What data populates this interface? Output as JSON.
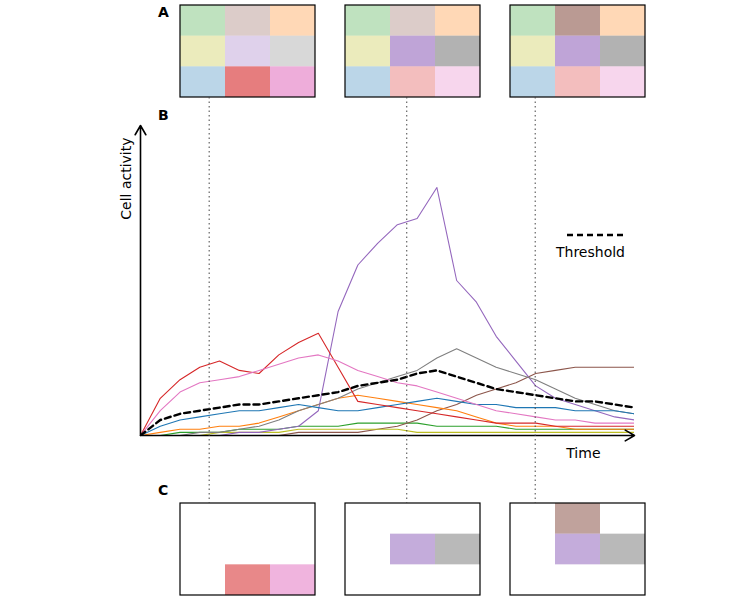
{
  "panel_labels": [
    "A",
    "B",
    "C"
  ],
  "chart_data": {
    "type": "line",
    "x_label": "Time",
    "y_label": "Cell activity",
    "tick_labels": false,
    "legend": "right",
    "xlim": [
      0,
      100
    ],
    "ylim": [
      0,
      100
    ],
    "snapshot_times": [
      14,
      54,
      80
    ],
    "x": [
      0,
      4,
      8,
      12,
      16,
      20,
      24,
      28,
      32,
      36,
      40,
      44,
      48,
      52,
      56,
      60,
      64,
      68,
      72,
      76,
      80,
      84,
      88,
      92,
      96,
      100
    ],
    "series": [
      {
        "color": "#2ca02c",
        "values": [
          0,
          0,
          1,
          1,
          1,
          2,
          2,
          2,
          3,
          3,
          3,
          4,
          4,
          4,
          4,
          3,
          3,
          3,
          3,
          2,
          2,
          2,
          2,
          2,
          2,
          2
        ]
      },
      {
        "color": "#8c564b",
        "values": [
          0,
          0,
          0,
          0,
          0,
          0,
          0,
          0,
          1,
          1,
          1,
          1,
          2,
          3,
          5,
          8,
          10,
          13,
          15,
          17,
          20,
          21,
          22,
          22,
          22,
          22
        ]
      },
      {
        "color": "#ff7f0e",
        "values": [
          0,
          1,
          2,
          2,
          3,
          3,
          4,
          6,
          8,
          10,
          12,
          13,
          12,
          11,
          10,
          9,
          8,
          6,
          4,
          3,
          3,
          3,
          2,
          2,
          2,
          2
        ]
      },
      {
        "color": "#bcbd22",
        "values": [
          0,
          0,
          0,
          0,
          1,
          1,
          1,
          1,
          2,
          2,
          2,
          2,
          2,
          2,
          1,
          1,
          1,
          1,
          1,
          1,
          1,
          1,
          1,
          1,
          1,
          1
        ]
      },
      {
        "color": "#9467bd",
        "values": [
          0,
          0,
          0,
          0,
          0,
          1,
          1,
          2,
          3,
          8,
          40,
          55,
          62,
          68,
          70,
          80,
          50,
          43,
          32,
          24,
          16,
          12,
          10,
          8,
          6,
          5
        ]
      },
      {
        "color": "#7f7f7f",
        "values": [
          0,
          0,
          0,
          1,
          1,
          2,
          3,
          5,
          8,
          10,
          12,
          15,
          17,
          19,
          21,
          25,
          28,
          25,
          22,
          20,
          18,
          15,
          12,
          10,
          8,
          7
        ]
      },
      {
        "color": "#1f77b4",
        "values": [
          0,
          3,
          5,
          6,
          7,
          8,
          8,
          9,
          10,
          9,
          8,
          8,
          9,
          10,
          11,
          12,
          11,
          10,
          10,
          9,
          9,
          9,
          8,
          8,
          8,
          7
        ]
      },
      {
        "color": "#d62728",
        "values": [
          0,
          12,
          18,
          22,
          24,
          21,
          20,
          26,
          30,
          33,
          22,
          11,
          10,
          9,
          8,
          7,
          6,
          5,
          4,
          4,
          4,
          3,
          3,
          3,
          3,
          3
        ]
      },
      {
        "color": "#e377c2",
        "values": [
          0,
          8,
          14,
          17,
          18,
          19,
          21,
          23,
          25,
          26,
          24,
          21,
          19,
          17,
          16,
          14,
          12,
          10,
          8,
          7,
          6,
          5,
          5,
          4,
          4,
          4
        ]
      },
      {
        "name": "Threshold",
        "color": "#000000",
        "line_style": "dashed",
        "values": [
          0,
          5,
          7,
          8,
          9,
          10,
          10,
          11,
          12,
          13,
          14,
          16,
          17,
          18,
          20,
          21,
          19,
          17,
          15,
          14,
          13,
          12,
          11,
          11,
          10,
          9
        ]
      }
    ]
  }
}
